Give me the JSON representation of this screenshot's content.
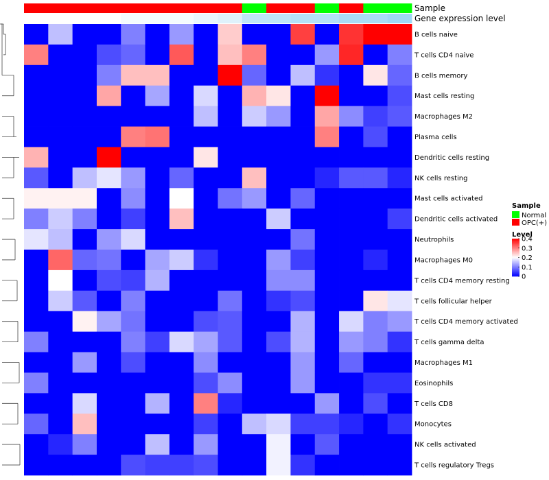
{
  "chart_data": {
    "type": "heatmap",
    "annotation_tracks": [
      {
        "name": "Sample",
        "values": [
          "OPC(+)",
          "OPC(+)",
          "OPC(+)",
          "OPC(+)",
          "OPC(+)",
          "OPC(+)",
          "OPC(+)",
          "OPC(+)",
          "OPC(+)",
          "Normal",
          "OPC(+)",
          "OPC(+)",
          "Normal",
          "OPC(+)",
          "Normal",
          "Normal"
        ]
      },
      {
        "name": "Gene expression level",
        "values": [
          0,
          0,
          0,
          0,
          0.05,
          0.05,
          0.05,
          0.1,
          0.15,
          0.3,
          0.3,
          0.35,
          0.35,
          0.4,
          0.4,
          0.45
        ]
      }
    ],
    "rows": [
      {
        "label": "B cells naive",
        "values": [
          0,
          0.15,
          0,
          0,
          0.1,
          0,
          0.12,
          0,
          0.24,
          0,
          0,
          0.35,
          0,
          0.36,
          0.4,
          0.4
        ]
      },
      {
        "label": "T cells CD4 naive",
        "values": [
          0.3,
          0,
          0,
          0.06,
          0.08,
          0,
          0.33,
          0,
          0.25,
          0.3,
          0,
          0,
          0.12,
          0.37,
          0,
          0.1
        ]
      },
      {
        "label": "B cells memory",
        "values": [
          0,
          0,
          0,
          0.1,
          0.25,
          0.25,
          0,
          0,
          0.4,
          0.08,
          0,
          0.15,
          0.04,
          0,
          0.22,
          0.08
        ]
      },
      {
        "label": "Mast cells resting",
        "values": [
          0,
          0,
          0,
          0.27,
          0,
          0.13,
          0,
          0.17,
          0,
          0.26,
          0.22,
          0,
          0.4,
          0,
          0,
          0.06
        ]
      },
      {
        "label": "Macrophages M2",
        "values": [
          0,
          0,
          0,
          0,
          0,
          0,
          0,
          0.15,
          0,
          0.16,
          0.12,
          0,
          0.27,
          0.11,
          0.05,
          0.07
        ]
      },
      {
        "label": "Plasma cells",
        "values": [
          0,
          0,
          0,
          0,
          0.3,
          0.31,
          0,
          0,
          0,
          0,
          0,
          0,
          0.3,
          0,
          0.06,
          0
        ]
      },
      {
        "label": "Dendritic cells resting",
        "values": [
          0.26,
          0,
          0,
          0.4,
          0,
          0,
          0,
          0.22,
          0,
          0,
          0,
          0,
          0,
          0,
          0,
          0
        ]
      },
      {
        "label": "NK cells resting",
        "values": [
          0.07,
          0,
          0.15,
          0.18,
          0.12,
          0,
          0.08,
          0,
          0,
          0.25,
          0,
          0,
          0.03,
          0.07,
          0.07,
          0.03
        ]
      },
      {
        "label": "Mast cells activated",
        "values": [
          0.21,
          0.21,
          0.21,
          0,
          0.11,
          0,
          0.2,
          0,
          0.09,
          0.12,
          0,
          0.08,
          0,
          0,
          0,
          0
        ]
      },
      {
        "label": "Dendritic cells activated",
        "values": [
          0.1,
          0.16,
          0.1,
          0,
          0.05,
          0,
          0.25,
          0,
          0,
          0,
          0.16,
          0,
          0,
          0,
          0,
          0.05
        ]
      },
      {
        "label": "Neutrophils",
        "values": [
          0.18,
          0.15,
          0,
          0.12,
          0.17,
          0,
          0,
          0,
          0,
          0,
          0,
          0.09,
          0,
          0,
          0,
          0
        ]
      },
      {
        "label": "Macrophages M0",
        "values": [
          0,
          0.32,
          0.08,
          0.09,
          0,
          0.13,
          0.16,
          0.04,
          0,
          0,
          0.12,
          0.05,
          0,
          0,
          0.03,
          0
        ]
      },
      {
        "label": "T cells CD4 memory resting",
        "values": [
          0,
          0.2,
          0,
          0.06,
          0.05,
          0.14,
          0,
          0,
          0,
          0,
          0.11,
          0.11,
          0,
          0,
          0,
          0
        ]
      },
      {
        "label": "T cells follicular helper",
        "values": [
          0,
          0.16,
          0.07,
          0,
          0.1,
          0,
          0,
          0,
          0.09,
          0,
          0.04,
          0.06,
          0,
          0,
          0.22,
          0.18
        ]
      },
      {
        "label": "T cells CD4 memory activated",
        "values": [
          0,
          0,
          0.21,
          0.13,
          0.09,
          0,
          0,
          0.06,
          0.07,
          0,
          0,
          0.14,
          0,
          0.17,
          0.1,
          0.12
        ]
      },
      {
        "label": "T cells gamma delta",
        "values": [
          0.1,
          0,
          0,
          0,
          0.1,
          0.05,
          0.17,
          0.13,
          0.07,
          0,
          0.06,
          0.14,
          0,
          0.12,
          0.1,
          0.04
        ]
      },
      {
        "label": "Macrophages M1",
        "values": [
          0,
          0,
          0.12,
          0,
          0.06,
          0,
          0,
          0.11,
          0,
          0,
          0,
          0.12,
          0,
          0.08,
          0,
          0
        ]
      },
      {
        "label": "Eosinophils",
        "values": [
          0.1,
          0,
          0,
          0,
          0,
          0,
          0,
          0.06,
          0.11,
          0,
          0,
          0.12,
          0,
          0,
          0.04,
          0.04
        ]
      },
      {
        "label": "T cells CD8",
        "values": [
          0,
          0,
          0.17,
          0,
          0,
          0.14,
          0,
          0.3,
          0.03,
          0,
          0,
          0,
          0.12,
          0,
          0.06,
          0
        ]
      },
      {
        "label": "Monocytes",
        "values": [
          0.08,
          0,
          0.25,
          0,
          0,
          0,
          0,
          0.05,
          0,
          0.15,
          0.17,
          0.05,
          0.05,
          0.03,
          0,
          0.04
        ]
      },
      {
        "label": "NK cells activated",
        "values": [
          0,
          0.03,
          0.1,
          0,
          0,
          0.15,
          0,
          0.12,
          0,
          0,
          0.19,
          0,
          0.07,
          0,
          0,
          0
        ]
      },
      {
        "label": "T cells regulatory  Tregs",
        "values": [
          0,
          0,
          0,
          0,
          0.06,
          0.05,
          0.05,
          0.06,
          0,
          0,
          0.19,
          0.04,
          0,
          0,
          0,
          0
        ]
      }
    ],
    "legend": {
      "sample_title": "Sample",
      "sample_entries": [
        {
          "label": "Normal",
          "color": "#00ff00"
        },
        {
          "label": "OPC(+)",
          "color": "#ff0000"
        }
      ],
      "level_title": "Level",
      "level_ticks": [
        {
          "value": 0.4,
          "label": "0.4"
        },
        {
          "value": 0.3,
          "label": "0.3"
        },
        {
          "value": 0.2,
          "label": "0.2"
        },
        {
          "value": 0.1,
          "label": "0.1"
        },
        {
          "value": 0,
          "label": "0"
        }
      ]
    },
    "color_scale": {
      "low": "#0000ff",
      "mid": "#ffffff",
      "high": "#ff0000",
      "min": 0,
      "mid_value": 0.2,
      "max": 0.4
    },
    "expression_track_colors": {
      "low": "#ffffff",
      "high": "#9ed8f5",
      "min": 0,
      "max": 0.45
    },
    "dendrogram": "rows-clustered"
  }
}
